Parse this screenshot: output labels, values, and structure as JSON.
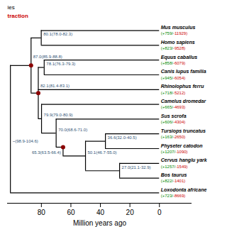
{
  "chart_data": {
    "type": "tree",
    "xlabel": "Million years ago",
    "xlim": [
      103,
      -22
    ],
    "xticks": [
      80,
      60,
      40,
      20,
      0
    ],
    "annotations": [
      {
        "text": "ies"
      },
      {
        "text": "traction",
        "color": "#cc0000"
      }
    ],
    "gain_labels": {
      "color": "#008800"
    },
    "loss_labels": {
      "color": "#cc0000"
    },
    "tree": {
      "label": "~(98.9-104.6)",
      "x": 101.0,
      "children": [
        {
          "label": "87.0(85.9-88.8)",
          "x": 87.0,
          "marker": "circle",
          "color": "#8b0000",
          "children": [
            {
              "label": "80.1(78.0-82.3)",
              "x": 80.1,
              "children": [
                {
                  "name": "Mus musculus",
                  "x": 0,
                  "gain_label": "(+759/",
                  "loss_label": "-11929)"
                },
                {
                  "name": "Homo sapiens",
                  "x": 0,
                  "gain_label": "(+823/",
                  "loss_label": "-9528)"
                }
              ]
            },
            {
              "label": "82.1(81.4-83.1)",
              "x": 82.1,
              "marker": "circle",
              "color": "#8b0000",
              "children": [
                {
                  "label": "78.1(76.3-79.3)",
                  "x": 78.1,
                  "children": [
                    {
                      "name": "Equus caballus",
                      "x": 0,
                      "gain_label": "(+858/",
                      "loss_label": "-6079)"
                    },
                    {
                      "name": "Canis lupus familia",
                      "x": 0,
                      "gain_label": "(+945/",
                      "loss_label": "-6054)"
                    }
                  ]
                },
                {
                  "name": "Rhinolophus ferru",
                  "x": 0,
                  "gain_label": "(+718/",
                  "loss_label": "-5212)"
                },
                {
                  "label": "79.9(79.0-80.9)",
                  "x": 79.9,
                  "children": [
                    {
                      "name": "Camelus dromedar",
                      "x": 0,
                      "gain_label": "(+665/",
                      "loss_label": "-4693)"
                    },
                    {
                      "label": "70.0(68.6-71.0)",
                      "x": 70.0,
                      "children": [
                        {
                          "name": "Sus scrofa",
                          "x": 0,
                          "gain_label": "(+606/",
                          "loss_label": "-4304)"
                        },
                        {
                          "label": "65.3(63.5-66.4)",
                          "x": 65.3,
                          "marker": "circle",
                          "color": "#8b0000",
                          "children": [
                            {
                              "label": "50.1(46.7-55.0)",
                              "x": 50.1,
                              "children": [
                                {
                                  "label": "36.6(32.0-40.5)",
                                  "x": 36.6,
                                  "children": [
                                    {
                                      "name": "Tursiops truncatus",
                                      "x": 0,
                                      "gain_label": "(+163/",
                                      "loss_label": "-2650)"
                                    },
                                    {
                                      "name": "Physeter catodon",
                                      "x": 0,
                                      "gain_label": "(+1207/",
                                      "loss_label": "-1090)"
                                    }
                                  ]
                                },
                                {
                                  "label": "27.0(21.1-32.9)",
                                  "x": 27.0,
                                  "children": [
                                    {
                                      "name": "Cervus hanglu yark",
                                      "x": 0,
                                      "gain_label": "(+1257/",
                                      "loss_label": "-1549)"
                                    },
                                    {
                                      "name": "Bos taurus",
                                      "x": 0,
                                      "gain_label": "(+822/",
                                      "loss_label": "-1401)"
                                    }
                                  ]
                                }
                              ]
                            }
                          ]
                        }
                      ]
                    }
                  ]
                }
              ]
            }
          ]
        },
        {
          "name": "Loxodonta africane",
          "x": 0,
          "gain_label": "(+723/",
          "loss_label": "-8669)"
        }
      ]
    }
  }
}
